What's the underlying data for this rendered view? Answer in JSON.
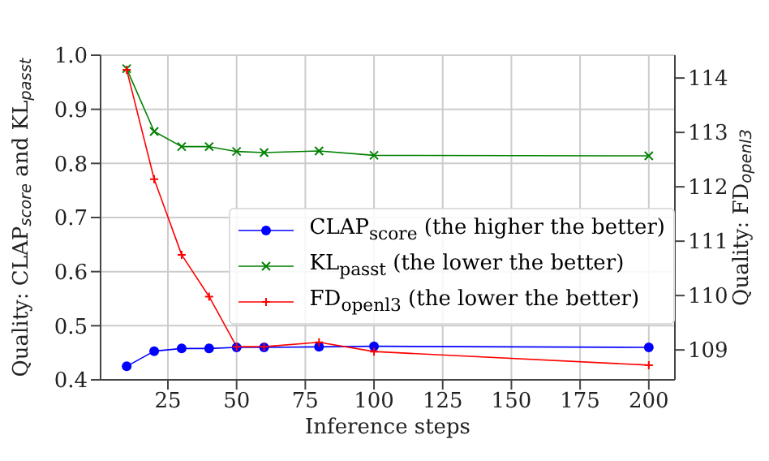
{
  "chart_data": {
    "type": "line",
    "xlabel": "Inference steps",
    "ylabel": "Quality: CLAP$_{score}$ and KL$_{passt}$",
    "y2label": "Quality: FD$_{openl3}$",
    "x": [
      10,
      20,
      30,
      40,
      50,
      60,
      80,
      100,
      200
    ],
    "series": [
      {
        "name": "CLAP$_{score}$ (the higher the better)",
        "color": "#0000ff",
        "marker": "circle",
        "values": [
          0.425,
          0.453,
          0.458,
          0.458,
          0.46,
          0.46,
          0.461,
          0.462,
          0.46
        ]
      },
      {
        "name": "KL$_{passt}$ (the lower the better)",
        "color": "#008000",
        "marker": "cross",
        "values": [
          0.975,
          0.859,
          0.831,
          0.831,
          0.822,
          0.82,
          0.823,
          0.815,
          0.814
        ]
      },
      {
        "name": "FD$_{openl3}$ (the lower the better)",
        "color": "#ff0000",
        "marker": "plus",
        "axis": "y2",
        "values": [
          114.15,
          112.14,
          110.75,
          109.98,
          109.06,
          109.06,
          109.14,
          108.97,
          108.72
        ]
      }
    ],
    "xlim": [
      0.5,
      209.5
    ],
    "xticks": [
      25,
      50,
      75,
      100,
      125,
      150,
      175,
      200
    ],
    "ylim": [
      0.4,
      1.0
    ],
    "yticks": [
      0.4,
      0.5,
      0.6,
      0.7,
      0.8,
      0.9,
      {
        "value": 1.0,
        "label": "1.0"
      }
    ],
    "y2lim": [
      108.45,
      114.42
    ],
    "y2ticks": [
      109,
      110,
      111,
      112,
      113,
      114
    ],
    "grid": true,
    "legend": "center right"
  }
}
